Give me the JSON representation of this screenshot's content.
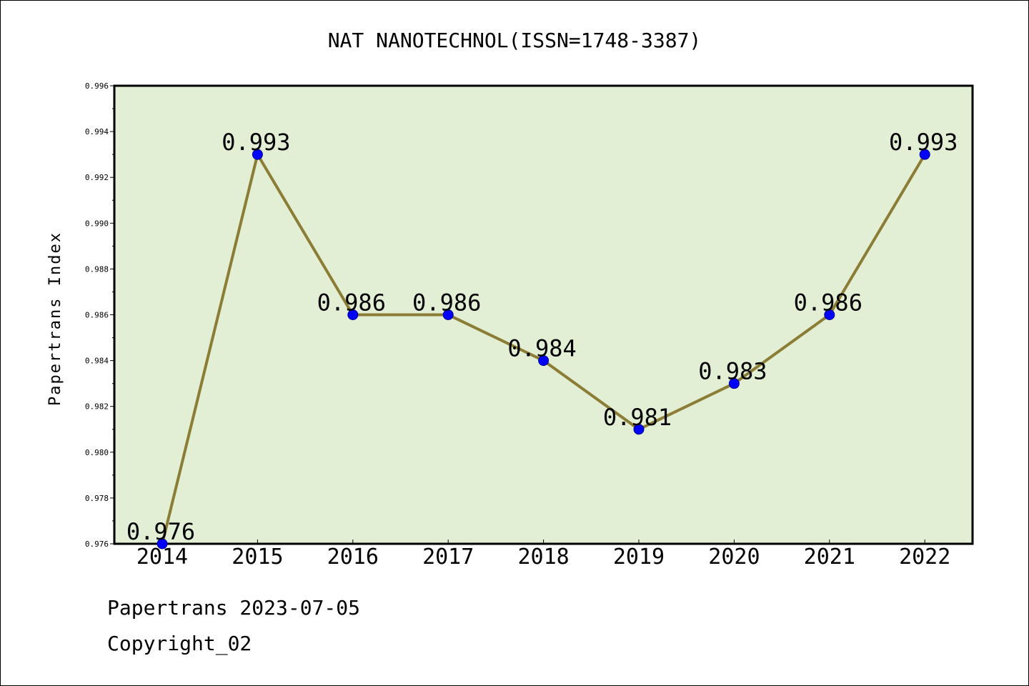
{
  "chart_data": {
    "type": "line",
    "title": "NAT NANOTECHNOL(ISSN=1748-3387)",
    "xlabel": "",
    "ylabel": "Papertrans Index",
    "categories": [
      "2014",
      "2015",
      "2016",
      "2017",
      "2018",
      "2019",
      "2020",
      "2021",
      "2022"
    ],
    "series": [
      {
        "values": [
          0.976,
          0.993,
          0.986,
          0.986,
          0.984,
          0.981,
          0.983,
          0.986,
          0.993
        ],
        "data_labels": [
          "0.976",
          "0.993",
          "0.986",
          "0.986",
          "0.984",
          "0.981",
          "0.983",
          "0.986",
          "0.993"
        ]
      }
    ],
    "ylim": [
      0.976,
      0.996
    ],
    "yticks": [
      "0.976",
      "0.978",
      "0.980",
      "0.982",
      "0.984",
      "0.986",
      "0.988",
      "0.990",
      "0.992",
      "0.994",
      "0.996"
    ],
    "grid": false,
    "legend": "none",
    "colors": {
      "plot_background": "#e2efd4",
      "line": "#8b7d36",
      "marker": "#0000ff",
      "axis": "#000000"
    }
  },
  "footer": {
    "line1": "Papertrans 2023-07-05",
    "line2": "Copyright_02"
  }
}
